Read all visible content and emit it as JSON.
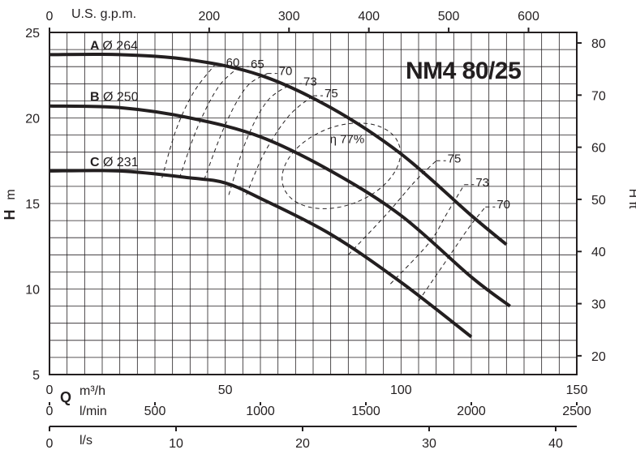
{
  "chart_data": {
    "type": "line",
    "model": "NM4 80/25",
    "ylabel_left": {
      "symbol": "H",
      "unit": "m"
    },
    "ylabel_right": "H ft",
    "y_ticks_left": [
      5,
      10,
      15,
      20,
      25
    ],
    "y_ticks_right": [
      20,
      30,
      40,
      50,
      60,
      70,
      80
    ],
    "ylim_m": [
      5,
      25
    ],
    "top_axis": {
      "label": "U.S. g.p.m.",
      "ticks": [
        0,
        200,
        300,
        400,
        500,
        600
      ]
    },
    "bottom_axes": [
      {
        "symbol": "Q",
        "label": "m³/h",
        "ticks": [
          0,
          50,
          100,
          150
        ]
      },
      {
        "label": "l/min",
        "ticks": [
          0,
          500,
          1000,
          1500,
          2000,
          2500
        ]
      },
      {
        "label": "l/s",
        "ticks": [
          0,
          10,
          20,
          30,
          40
        ]
      }
    ],
    "xlim_m3h": [
      0,
      150
    ],
    "grid": true,
    "series": [
      {
        "name": "A",
        "diameter": "Ø 264",
        "x": [
          0,
          20,
          40,
          60,
          80,
          100,
          120,
          130
        ],
        "y": [
          23.7,
          23.7,
          23.4,
          22.5,
          20.6,
          17.9,
          14.3,
          12.6
        ]
      },
      {
        "name": "B",
        "diameter": "Ø 250",
        "x": [
          0,
          20,
          40,
          60,
          80,
          100,
          120,
          131
        ],
        "y": [
          20.7,
          20.6,
          20.0,
          18.9,
          16.9,
          14.3,
          10.7,
          9.0
        ]
      },
      {
        "name": "C",
        "diameter": "Ø 231",
        "x": [
          0,
          20,
          40,
          50,
          60,
          80,
          100,
          120
        ],
        "y": [
          16.9,
          16.9,
          16.5,
          16.2,
          15.3,
          13.2,
          10.4,
          7.2
        ]
      }
    ],
    "efficiency_curves": [
      {
        "label": "60",
        "x": [
          32,
          36,
          41,
          47
        ],
        "y": [
          16.5,
          19.3,
          21.5,
          23.1
        ]
      },
      {
        "label": "65",
        "x": [
          37,
          42,
          48,
          54
        ],
        "y": [
          16.5,
          19.4,
          21.8,
          23.0
        ]
      },
      {
        "label": "70",
        "x": [
          44,
          50,
          56,
          62
        ],
        "y": [
          16.4,
          19.6,
          21.8,
          22.6
        ]
      },
      {
        "label": "73",
        "x": [
          51,
          56,
          62,
          69
        ],
        "y": [
          15.5,
          18.7,
          21.0,
          22.0
        ]
      },
      {
        "label": "75",
        "x": [
          56,
          61,
          68,
          75
        ],
        "y": [
          15.5,
          17.9,
          20.1,
          21.3
        ]
      },
      {
        "label": "η 77%",
        "ellipse": {
          "cx": 83,
          "cy": 17.2,
          "rx": 17.5,
          "ry": 2.3,
          "rotate_deg": -21
        }
      },
      {
        "label": "75",
        "x": [
          85,
          96,
          104,
          110
        ],
        "y": [
          12.0,
          14.4,
          16.3,
          17.5
        ]
      },
      {
        "label": "73",
        "x": [
          97,
          108,
          113,
          118
        ],
        "y": [
          10.3,
          12.7,
          14.4,
          16.1
        ]
      },
      {
        "label": "70",
        "x": [
          105,
          113,
          119,
          124
        ],
        "y": [
          9.3,
          11.7,
          13.5,
          14.8
        ]
      }
    ]
  }
}
